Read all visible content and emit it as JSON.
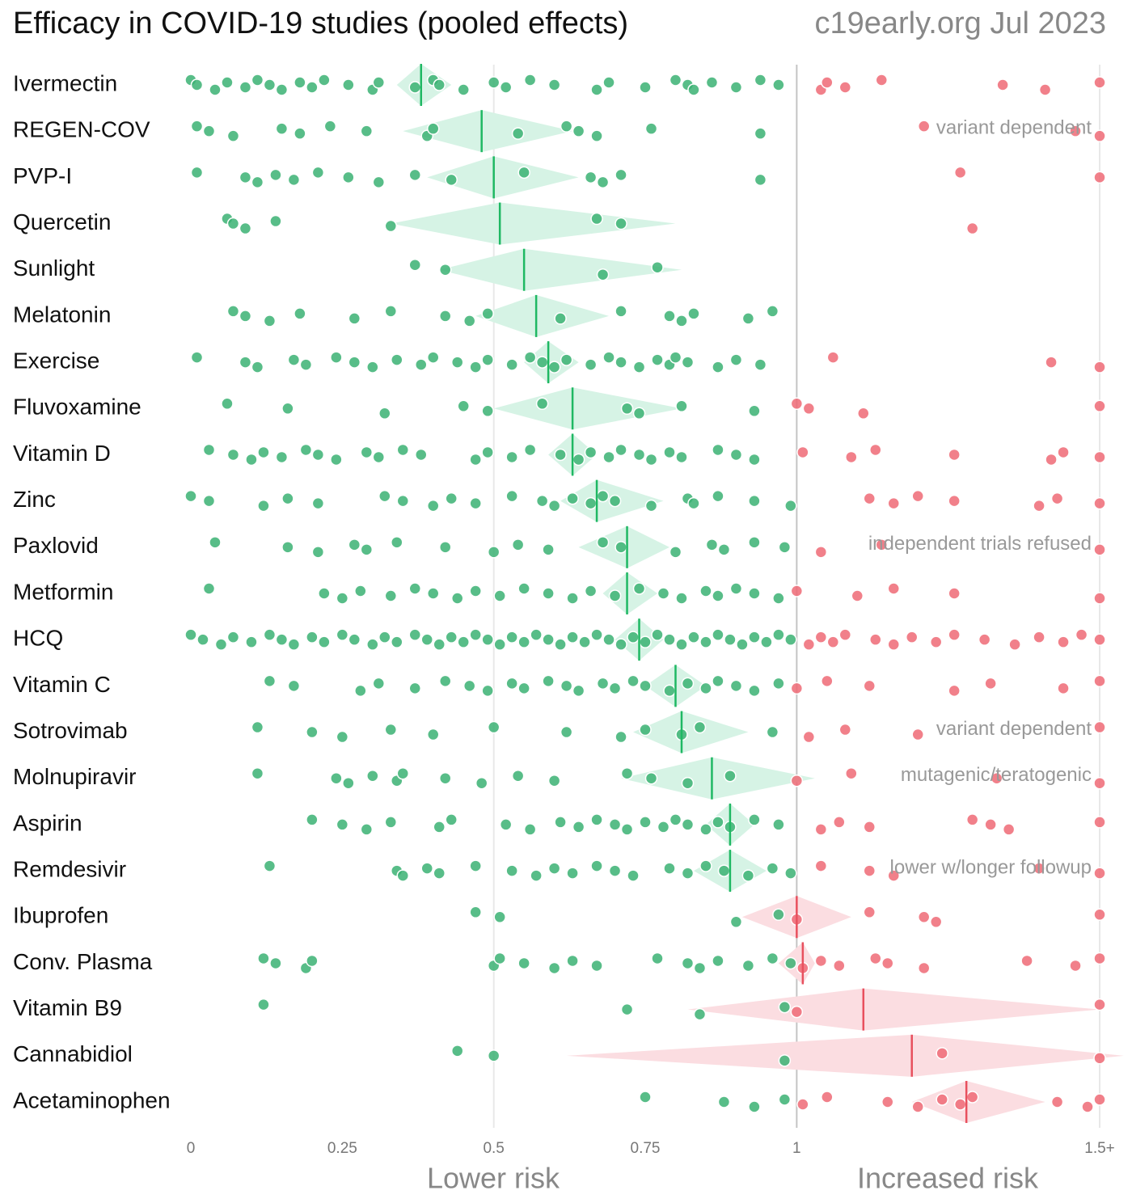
{
  "chart_data": {
    "type": "forest",
    "title": "Efficacy in COVID-19 studies (pooled effects)",
    "source": "c19early.org Jul 2023",
    "xlim": [
      0,
      1.54
    ],
    "xticks": [
      0,
      0.25,
      0.5,
      0.75,
      1,
      {
        "value": 1.5,
        "label": "1.5+"
      }
    ],
    "grid": [
      0.5,
      1.5
    ],
    "reference": 1,
    "x_label_low": "Lower risk",
    "x_label_high": "Increased risk",
    "colors": {
      "benefit_dot": "#3bb273",
      "benefit_diamond": "#d6f3e5",
      "benefit_line": "#1fb863",
      "harm_dot": "#ee6a76",
      "harm_diamond": "#fbdde1",
      "harm_line": "#e8505e"
    },
    "rows": [
      {
        "name": "Ivermectin",
        "pooled": 0.38,
        "ci": [
          0.34,
          0.43
        ],
        "studies": [
          0.0,
          0.01,
          0.04,
          0.06,
          0.09,
          0.11,
          0.13,
          0.15,
          0.18,
          0.2,
          0.22,
          0.26,
          0.3,
          0.31,
          0.37,
          0.4,
          0.41,
          0.45,
          0.5,
          0.52,
          0.56,
          0.6,
          0.67,
          0.69,
          0.75,
          0.8,
          0.82,
          0.83,
          0.86,
          0.9,
          0.94,
          0.97,
          1.04,
          1.05,
          1.08,
          1.14,
          1.34,
          1.41,
          1.5
        ]
      },
      {
        "name": "REGEN-COV",
        "pooled": 0.48,
        "ci": [
          0.35,
          0.63
        ],
        "note": "variant dependent",
        "studies": [
          0.01,
          0.03,
          0.07,
          0.15,
          0.18,
          0.23,
          0.29,
          0.39,
          0.4,
          0.54,
          0.62,
          0.64,
          0.67,
          0.76,
          0.94,
          1.21,
          1.46,
          1.5
        ]
      },
      {
        "name": "PVP-I",
        "pooled": 0.5,
        "ci": [
          0.39,
          0.64
        ],
        "studies": [
          0.01,
          0.09,
          0.11,
          0.14,
          0.17,
          0.21,
          0.26,
          0.31,
          0.37,
          0.43,
          0.55,
          0.66,
          0.68,
          0.71,
          0.94,
          1.27,
          1.5
        ]
      },
      {
        "name": "Quercetin",
        "pooled": 0.51,
        "ci": [
          0.33,
          0.8
        ],
        "studies": [
          0.06,
          0.07,
          0.09,
          0.14,
          0.33,
          0.67,
          0.71,
          1.29
        ]
      },
      {
        "name": "Sunlight",
        "pooled": 0.55,
        "ci": [
          0.41,
          0.81
        ],
        "studies": [
          0.37,
          0.42,
          0.68,
          0.77
        ]
      },
      {
        "name": "Melatonin",
        "pooled": 0.57,
        "ci": [
          0.47,
          0.69
        ],
        "studies": [
          0.07,
          0.09,
          0.13,
          0.18,
          0.27,
          0.33,
          0.42,
          0.46,
          0.49,
          0.61,
          0.71,
          0.79,
          0.81,
          0.83,
          0.92,
          0.96
        ]
      },
      {
        "name": "Exercise",
        "pooled": 0.59,
        "ci": [
          0.55,
          0.64
        ],
        "studies": [
          0.01,
          0.09,
          0.11,
          0.17,
          0.19,
          0.24,
          0.27,
          0.3,
          0.34,
          0.38,
          0.4,
          0.44,
          0.47,
          0.49,
          0.53,
          0.56,
          0.58,
          0.6,
          0.62,
          0.66,
          0.69,
          0.71,
          0.74,
          0.77,
          0.79,
          0.8,
          0.82,
          0.87,
          0.9,
          0.94,
          1.06,
          1.42,
          1.5
        ]
      },
      {
        "name": "Fluvoxamine",
        "pooled": 0.63,
        "ci": [
          0.5,
          0.81
        ],
        "studies": [
          0.06,
          0.16,
          0.32,
          0.45,
          0.49,
          0.58,
          0.72,
          0.74,
          0.81,
          0.93,
          1.0,
          1.02,
          1.11,
          1.5
        ]
      },
      {
        "name": "Vitamin D",
        "pooled": 0.63,
        "ci": [
          0.59,
          0.67
        ],
        "studies": [
          0.03,
          0.07,
          0.1,
          0.12,
          0.15,
          0.19,
          0.21,
          0.24,
          0.29,
          0.31,
          0.35,
          0.38,
          0.47,
          0.49,
          0.53,
          0.56,
          0.61,
          0.64,
          0.66,
          0.69,
          0.71,
          0.74,
          0.76,
          0.79,
          0.81,
          0.87,
          0.9,
          0.93,
          1.01,
          1.09,
          1.13,
          1.26,
          1.42,
          1.44,
          1.5
        ]
      },
      {
        "name": "Zinc",
        "pooled": 0.67,
        "ci": [
          0.61,
          0.78
        ],
        "studies": [
          0.0,
          0.03,
          0.12,
          0.16,
          0.21,
          0.32,
          0.35,
          0.4,
          0.43,
          0.47,
          0.53,
          0.58,
          0.6,
          0.63,
          0.66,
          0.68,
          0.7,
          0.76,
          0.82,
          0.83,
          0.87,
          0.93,
          0.99,
          1.12,
          1.16,
          1.2,
          1.26,
          1.4,
          1.43,
          1.5
        ]
      },
      {
        "name": "Paxlovid",
        "pooled": 0.72,
        "ci": [
          0.64,
          0.79
        ],
        "note": "independent trials refused",
        "studies": [
          0.04,
          0.16,
          0.21,
          0.27,
          0.29,
          0.34,
          0.42,
          0.5,
          0.54,
          0.59,
          0.68,
          0.71,
          0.8,
          0.86,
          0.88,
          0.93,
          0.98,
          1.04,
          1.14,
          1.5
        ]
      },
      {
        "name": "Metformin",
        "pooled": 0.72,
        "ci": [
          0.68,
          0.77
        ],
        "studies": [
          0.03,
          0.22,
          0.25,
          0.28,
          0.33,
          0.37,
          0.4,
          0.44,
          0.47,
          0.51,
          0.55,
          0.59,
          0.63,
          0.66,
          0.7,
          0.74,
          0.78,
          0.81,
          0.85,
          0.87,
          0.9,
          0.93,
          0.97,
          1.0,
          1.1,
          1.16,
          1.26,
          1.5
        ]
      },
      {
        "name": "HCQ",
        "pooled": 0.74,
        "ci": [
          0.7,
          0.78
        ],
        "studies": [
          0.0,
          0.02,
          0.05,
          0.07,
          0.1,
          0.13,
          0.15,
          0.17,
          0.2,
          0.22,
          0.25,
          0.27,
          0.3,
          0.32,
          0.34,
          0.37,
          0.39,
          0.41,
          0.43,
          0.45,
          0.47,
          0.49,
          0.51,
          0.53,
          0.55,
          0.57,
          0.59,
          0.61,
          0.63,
          0.65,
          0.67,
          0.69,
          0.71,
          0.73,
          0.75,
          0.77,
          0.79,
          0.81,
          0.83,
          0.85,
          0.87,
          0.89,
          0.91,
          0.93,
          0.95,
          0.97,
          0.99,
          1.02,
          1.04,
          1.06,
          1.08,
          1.13,
          1.16,
          1.19,
          1.23,
          1.26,
          1.31,
          1.36,
          1.4,
          1.44,
          1.47,
          1.5
        ]
      },
      {
        "name": "Vitamin C",
        "pooled": 0.8,
        "ci": [
          0.75,
          0.85
        ],
        "studies": [
          0.13,
          0.17,
          0.28,
          0.31,
          0.37,
          0.42,
          0.46,
          0.49,
          0.53,
          0.55,
          0.59,
          0.62,
          0.64,
          0.68,
          0.7,
          0.73,
          0.75,
          0.79,
          0.82,
          0.85,
          0.87,
          0.9,
          0.93,
          0.97,
          1.0,
          1.05,
          1.12,
          1.26,
          1.32,
          1.44,
          1.5
        ]
      },
      {
        "name": "Sotrovimab",
        "pooled": 0.81,
        "ci": [
          0.73,
          0.92
        ],
        "note": "variant dependent",
        "studies": [
          0.11,
          0.2,
          0.25,
          0.33,
          0.4,
          0.5,
          0.62,
          0.71,
          0.75,
          0.81,
          0.84,
          0.96,
          1.02,
          1.08,
          1.2,
          1.5
        ]
      },
      {
        "name": "Molnupiravir",
        "pooled": 0.86,
        "ci": [
          0.71,
          1.03
        ],
        "note": "mutagenic/teratogenic",
        "studies": [
          0.11,
          0.24,
          0.26,
          0.3,
          0.34,
          0.35,
          0.42,
          0.48,
          0.54,
          0.6,
          0.72,
          0.76,
          0.82,
          0.89,
          1.0,
          1.09,
          1.33,
          1.5
        ]
      },
      {
        "name": "Aspirin",
        "pooled": 0.89,
        "ci": [
          0.85,
          0.93
        ],
        "studies": [
          0.2,
          0.25,
          0.29,
          0.33,
          0.41,
          0.43,
          0.52,
          0.56,
          0.61,
          0.64,
          0.67,
          0.7,
          0.72,
          0.75,
          0.78,
          0.8,
          0.82,
          0.85,
          0.87,
          0.89,
          0.93,
          0.97,
          1.04,
          1.07,
          1.12,
          1.29,
          1.32,
          1.35,
          1.5
        ]
      },
      {
        "name": "Remdesivir",
        "pooled": 0.89,
        "ci": [
          0.83,
          0.95
        ],
        "note": "lower w/longer followup",
        "studies": [
          0.13,
          0.34,
          0.35,
          0.39,
          0.41,
          0.47,
          0.53,
          0.57,
          0.6,
          0.63,
          0.67,
          0.7,
          0.73,
          0.79,
          0.82,
          0.85,
          0.88,
          0.92,
          0.96,
          0.99,
          1.04,
          1.12,
          1.16,
          1.4,
          1.5
        ]
      },
      {
        "name": "Ibuprofen",
        "pooled": 1.0,
        "ci": [
          0.91,
          1.09
        ],
        "studies": [
          0.47,
          0.51,
          0.9,
          0.97,
          1.0,
          1.12,
          1.21,
          1.23,
          1.5
        ]
      },
      {
        "name": "Conv. Plasma",
        "pooled": 1.01,
        "ci": [
          0.97,
          1.03
        ],
        "studies": [
          0.12,
          0.14,
          0.19,
          0.2,
          0.5,
          0.51,
          0.55,
          0.6,
          0.63,
          0.67,
          0.77,
          0.82,
          0.84,
          0.87,
          0.92,
          0.96,
          0.99,
          1.01,
          1.04,
          1.07,
          1.13,
          1.15,
          1.21,
          1.38,
          1.46,
          1.5
        ]
      },
      {
        "name": "Vitamin B9",
        "pooled": 1.11,
        "ci": [
          0.82,
          1.5
        ],
        "studies": [
          0.12,
          0.72,
          0.84,
          0.98,
          1.0,
          1.5
        ]
      },
      {
        "name": "Cannabidiol",
        "pooled": 1.19,
        "ci": [
          0.62,
          1.54
        ],
        "studies": [
          0.44,
          0.5,
          0.98,
          1.24,
          1.5
        ]
      },
      {
        "name": "Acetaminophen",
        "pooled": 1.28,
        "ci": [
          1.19,
          1.41
        ],
        "studies": [
          0.75,
          0.88,
          0.93,
          0.98,
          1.01,
          1.05,
          1.15,
          1.2,
          1.24,
          1.27,
          1.29,
          1.43,
          1.48,
          1.5
        ]
      }
    ]
  }
}
